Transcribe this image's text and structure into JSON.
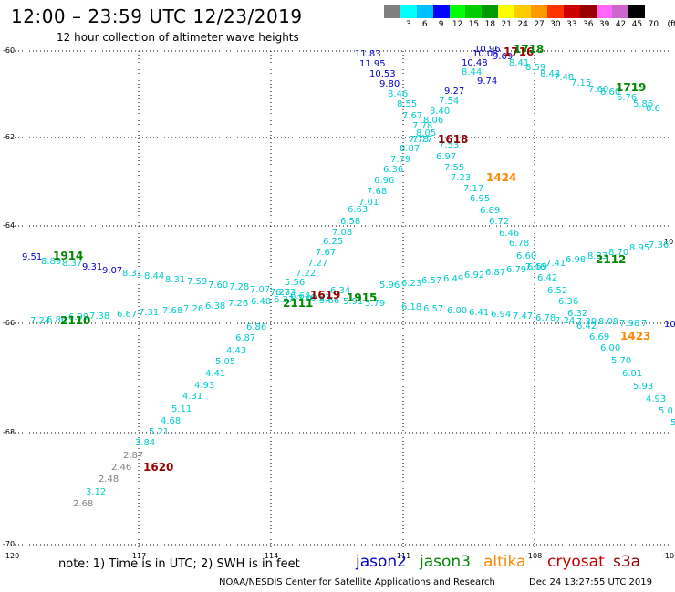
{
  "header": {
    "title": "12:00 – 23:59 UTC 12/23/2019",
    "subtitle": "12 hour collection of altimeter wave heights"
  },
  "legend": {
    "unit": "(ft)",
    "swatches": [
      "#7f7f7f",
      "#00ffff",
      "#00bfff",
      "#0000ff",
      "#00ff00",
      "#00cc00",
      "#009900",
      "#ffff00",
      "#ffcc00",
      "#ff9900",
      "#ff3300",
      "#cc0000",
      "#990000",
      "#ff66ff",
      "#cc66cc",
      "#000000"
    ],
    "labels": [
      "3",
      "6",
      "9",
      "12",
      "15",
      "18",
      "21",
      "24",
      "27",
      "30",
      "33",
      "36",
      "39",
      "42",
      "45",
      "70"
    ]
  },
  "axes": {
    "lat_labels": [
      "-60",
      "-62",
      "-64",
      "-66",
      "-68",
      "-70"
    ],
    "lon_labels": [
      "-120",
      "-117",
      "-114",
      "-111",
      "-108",
      "-10"
    ],
    "right_label": "10"
  },
  "satellites": [
    {
      "name": "jason2",
      "color": "#0000cc"
    },
    {
      "name": "jason3",
      "color": "#008800"
    },
    {
      "name": "altika",
      "color": "#ff8800"
    },
    {
      "name": "cryosat",
      "color": "#cc0000"
    },
    {
      "name": "s3a",
      "color": "#990000"
    }
  ],
  "footer": {
    "note": "note:  1) Time is in UTC;  2) SWH is in feet",
    "credit": "NOAA/NESDIS Center for Satellite Applications and Research",
    "timestamp": "Dec 24 13:27:55 UTC 2019"
  },
  "colors": {
    "cyan": "#00cccc",
    "gray": "#808080",
    "blue": "#0000cc",
    "green": "#008800",
    "orange": "#ff8800",
    "darkred": "#990000"
  },
  "track_labels": [
    {
      "text": "1914",
      "color": "green"
    },
    {
      "text": "2110",
      "color": "green"
    },
    {
      "text": "1620",
      "color": "darkred"
    },
    {
      "text": "2111",
      "color": "green"
    },
    {
      "text": "1619",
      "color": "darkred"
    },
    {
      "text": "1915",
      "color": "green"
    },
    {
      "text": "1618",
      "color": "darkred"
    },
    {
      "text": "1424",
      "color": "orange"
    },
    {
      "text": "1716",
      "color": "darkred"
    },
    {
      "text": "1718",
      "color": "green"
    },
    {
      "text": "1719",
      "color": "green"
    },
    {
      "text": "2112",
      "color": "green"
    },
    {
      "text": "1423",
      "color": "orange"
    }
  ],
  "obs_values": [
    {
      "text": "11.83",
      "color": "blue"
    },
    {
      "text": "11.95",
      "color": "blue"
    },
    {
      "text": "10.53",
      "color": "blue"
    },
    {
      "text": "9.80",
      "color": "blue"
    },
    {
      "text": "8.46",
      "color": "cyan"
    },
    {
      "text": "8.55",
      "color": "cyan"
    },
    {
      "text": "7.67",
      "color": "cyan"
    },
    {
      "text": "7.78",
      "color": "cyan"
    },
    {
      "text": "8.05",
      "color": "cyan"
    },
    {
      "text": "7.77",
      "color": "cyan"
    },
    {
      "text": "7.53",
      "color": "cyan"
    },
    {
      "text": "6.97",
      "color": "cyan"
    },
    {
      "text": "7.55",
      "color": "cyan"
    },
    {
      "text": "7.23",
      "color": "cyan"
    },
    {
      "text": "7.17",
      "color": "cyan"
    },
    {
      "text": "6.95",
      "color": "cyan"
    },
    {
      "text": "6.89",
      "color": "cyan"
    },
    {
      "text": "6.72",
      "color": "cyan"
    },
    {
      "text": "6.46",
      "color": "cyan"
    },
    {
      "text": "6.78",
      "color": "cyan"
    },
    {
      "text": "6.60",
      "color": "cyan"
    },
    {
      "text": "6.59",
      "color": "cyan"
    },
    {
      "text": "6.42",
      "color": "cyan"
    },
    {
      "text": "6.52",
      "color": "cyan"
    },
    {
      "text": "6.36",
      "color": "cyan"
    },
    {
      "text": "6.32",
      "color": "cyan"
    },
    {
      "text": "6.42",
      "color": "cyan"
    },
    {
      "text": "6.69",
      "color": "cyan"
    },
    {
      "text": "6.00",
      "color": "cyan"
    },
    {
      "text": "5.70",
      "color": "cyan"
    },
    {
      "text": "6.01",
      "color": "cyan"
    },
    {
      "text": "5.93",
      "color": "cyan"
    },
    {
      "text": "4.93",
      "color": "cyan"
    },
    {
      "text": "5.0",
      "color": "cyan"
    },
    {
      "text": "5",
      "color": "cyan"
    },
    {
      "text": "10.96",
      "color": "blue"
    },
    {
      "text": "10.48",
      "color": "blue"
    },
    {
      "text": "9.74",
      "color": "blue"
    },
    {
      "text": "9.27",
      "color": "blue"
    },
    {
      "text": "8.44",
      "color": "cyan"
    },
    {
      "text": "7.54",
      "color": "cyan"
    },
    {
      "text": "8.40",
      "color": "cyan"
    },
    {
      "text": "8.06",
      "color": "cyan"
    },
    {
      "text": "7.73",
      "color": "cyan"
    },
    {
      "text": "8.87",
      "color": "cyan"
    },
    {
      "text": "7.79",
      "color": "cyan"
    },
    {
      "text": "6.36",
      "color": "cyan"
    },
    {
      "text": "6.96",
      "color": "cyan"
    },
    {
      "text": "7.68",
      "color": "cyan"
    },
    {
      "text": "7.01",
      "color": "cyan"
    },
    {
      "text": "6.63",
      "color": "cyan"
    },
    {
      "text": "6.58",
      "color": "cyan"
    },
    {
      "text": "7.08",
      "color": "cyan"
    },
    {
      "text": "6.25",
      "color": "cyan"
    },
    {
      "text": "7.67",
      "color": "cyan"
    },
    {
      "text": "7.27",
      "color": "cyan"
    },
    {
      "text": "7.22",
      "color": "cyan"
    },
    {
      "text": "5.56",
      "color": "cyan"
    },
    {
      "text": "6.73",
      "color": "cyan"
    },
    {
      "text": "6.86",
      "color": "cyan"
    },
    {
      "text": "6.87",
      "color": "cyan"
    },
    {
      "text": "4.43",
      "color": "cyan"
    },
    {
      "text": "5.05",
      "color": "cyan"
    },
    {
      "text": "4.41",
      "color": "cyan"
    },
    {
      "text": "4.93",
      "color": "cyan"
    },
    {
      "text": "4.31",
      "color": "cyan"
    },
    {
      "text": "5.11",
      "color": "cyan"
    },
    {
      "text": "4.68",
      "color": "cyan"
    },
    {
      "text": "5.21",
      "color": "cyan"
    },
    {
      "text": "3.84",
      "color": "cyan"
    },
    {
      "text": "2.87",
      "color": "gray"
    },
    {
      "text": "2.46",
      "color": "gray"
    },
    {
      "text": "2.48",
      "color": "gray"
    },
    {
      "text": "3.12",
      "color": "cyan"
    },
    {
      "text": "2.68",
      "color": "gray"
    },
    {
      "text": "9.51",
      "color": "blue"
    },
    {
      "text": "8.89",
      "color": "cyan"
    },
    {
      "text": "8.37",
      "color": "cyan"
    },
    {
      "text": "9.31",
      "color": "blue"
    },
    {
      "text": "9.07",
      "color": "blue"
    },
    {
      "text": "8.31",
      "color": "cyan"
    },
    {
      "text": "8.44",
      "color": "cyan"
    },
    {
      "text": "8.31",
      "color": "cyan"
    },
    {
      "text": "7.59",
      "color": "cyan"
    },
    {
      "text": "7.60",
      "color": "cyan"
    },
    {
      "text": "7.28",
      "color": "cyan"
    },
    {
      "text": "7.07",
      "color": "cyan"
    },
    {
      "text": "7.25",
      "color": "cyan"
    },
    {
      "text": "6.64",
      "color": "cyan"
    },
    {
      "text": "6.53",
      "color": "cyan"
    },
    {
      "text": "6.34",
      "color": "cyan"
    },
    {
      "text": "5.96",
      "color": "cyan"
    },
    {
      "text": "6.23",
      "color": "cyan"
    },
    {
      "text": "6.57",
      "color": "cyan"
    },
    {
      "text": "6.49",
      "color": "cyan"
    },
    {
      "text": "6.92",
      "color": "cyan"
    },
    {
      "text": "6.87",
      "color": "cyan"
    },
    {
      "text": "6.79",
      "color": "cyan"
    },
    {
      "text": "7.46",
      "color": "cyan"
    },
    {
      "text": "7.41",
      "color": "cyan"
    },
    {
      "text": "6.98",
      "color": "cyan"
    },
    {
      "text": "8.33",
      "color": "cyan"
    },
    {
      "text": "8.70",
      "color": "cyan"
    },
    {
      "text": "8.95",
      "color": "cyan"
    },
    {
      "text": "7.36",
      "color": "cyan"
    },
    {
      "text": "7.24",
      "color": "cyan"
    },
    {
      "text": "6.86",
      "color": "cyan"
    },
    {
      "text": "6.99",
      "color": "cyan"
    },
    {
      "text": "7.38",
      "color": "cyan"
    },
    {
      "text": "6.67",
      "color": "cyan"
    },
    {
      "text": "7.31",
      "color": "cyan"
    },
    {
      "text": "7.68",
      "color": "cyan"
    },
    {
      "text": "7.26",
      "color": "cyan"
    },
    {
      "text": "6.38",
      "color": "cyan"
    },
    {
      "text": "7.26",
      "color": "cyan"
    },
    {
      "text": "6.40",
      "color": "cyan"
    },
    {
      "text": "6.37",
      "color": "cyan"
    },
    {
      "text": "7.02",
      "color": "cyan"
    },
    {
      "text": "5.66",
      "color": "cyan"
    },
    {
      "text": "5.91",
      "color": "cyan"
    },
    {
      "text": "5.79",
      "color": "cyan"
    },
    {
      "text": "6.18",
      "color": "cyan"
    },
    {
      "text": "6.57",
      "color": "cyan"
    },
    {
      "text": "6.00",
      "color": "cyan"
    },
    {
      "text": "6.41",
      "color": "cyan"
    },
    {
      "text": "6.94",
      "color": "cyan"
    },
    {
      "text": "7.47",
      "color": "cyan"
    },
    {
      "text": "6.78",
      "color": "cyan"
    },
    {
      "text": "7.24",
      "color": "cyan"
    },
    {
      "text": "7.39",
      "color": "cyan"
    },
    {
      "text": "8.09",
      "color": "cyan"
    },
    {
      "text": "7.98",
      "color": "cyan"
    },
    {
      "text": "7",
      "color": "cyan"
    },
    {
      "text": "10.07",
      "color": "blue"
    },
    {
      "text": "10.05",
      "color": "blue"
    },
    {
      "text": "9.69",
      "color": "blue"
    },
    {
      "text": "8.41",
      "color": "cyan"
    },
    {
      "text": "8.59",
      "color": "cyan"
    },
    {
      "text": "8.43",
      "color": "cyan"
    },
    {
      "text": "7.48",
      "color": "cyan"
    },
    {
      "text": "7.15",
      "color": "cyan"
    },
    {
      "text": "7.60",
      "color": "cyan"
    },
    {
      "text": "6.60",
      "color": "cyan"
    },
    {
      "text": "6.76",
      "color": "cyan"
    },
    {
      "text": "5.86",
      "color": "cyan"
    },
    {
      "text": "6.6",
      "color": "cyan"
    }
  ]
}
